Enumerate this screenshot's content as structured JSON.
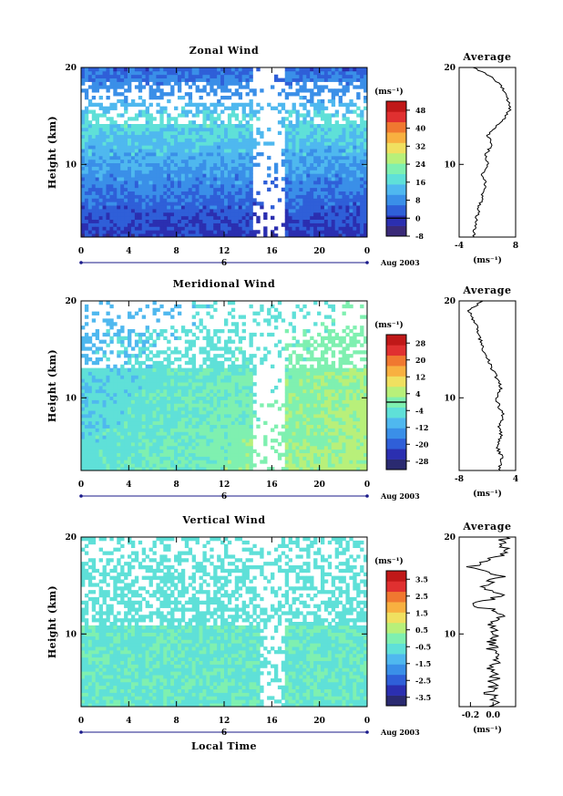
{
  "figure": {
    "xlabel_bottom": "Local Time",
    "date_label": "Aug 2003",
    "day_label": "6",
    "unit_label": "(ms⁻¹)",
    "avg_unit_label": "(ms⁻¹)",
    "avg_title": "Average"
  },
  "chart_data": [
    {
      "type": "heatmap",
      "title": "Zonal Wind",
      "ylabel": "Height (km)",
      "x_ticks": [
        "0",
        "4",
        "8",
        "12",
        "16",
        "20",
        "0"
      ],
      "y_ticks": [
        "10",
        "20"
      ],
      "xlim": [
        0,
        24
      ],
      "ylim": [
        2.5,
        20
      ],
      "colorbar_ticks": [
        "48",
        "40",
        "32",
        "24",
        "16",
        "8",
        "0",
        "-8"
      ],
      "colorbar_range": [
        -8,
        52
      ],
      "colors": [
        "#3a2a78",
        "#2b2fb0",
        "#2f5fd8",
        "#3a8fe8",
        "#4fb8ef",
        "#5fe0d8",
        "#7ff0b0",
        "#b8f07a",
        "#f0e060",
        "#f8b040",
        "#f07830",
        "#e03030",
        "#c01818"
      ],
      "average": {
        "title": "Average",
        "x_ticks": [
          "-4",
          "8"
        ],
        "xlim": [
          -4,
          8
        ],
        "profile_height": [
          2.5,
          4,
          5,
          6,
          7,
          8,
          9,
          10,
          11,
          12,
          13,
          14,
          15,
          16,
          17,
          18,
          19,
          20
        ],
        "profile_value": [
          -1,
          -0.5,
          0,
          0.5,
          1,
          1.5,
          1,
          2,
          1.5,
          3,
          2,
          4,
          6,
          7,
          6,
          5,
          3,
          -1
        ]
      }
    },
    {
      "type": "heatmap",
      "title": "Meridional Wind",
      "ylabel": "Height (km)",
      "x_ticks": [
        "0",
        "4",
        "8",
        "12",
        "16",
        "20",
        "0"
      ],
      "y_ticks": [
        "10",
        "20"
      ],
      "xlim": [
        0,
        24
      ],
      "ylim": [
        2.5,
        20
      ],
      "colorbar_ticks": [
        "28",
        "20",
        "12",
        "4",
        "-4",
        "-12",
        "-20",
        "-28"
      ],
      "colorbar_range": [
        -32,
        32
      ],
      "colors": [
        "#2a2a70",
        "#2b2fb0",
        "#2f5fd8",
        "#3a8fe8",
        "#4fb8ef",
        "#5fe0d8",
        "#7ff0b0",
        "#b8f07a",
        "#f0e060",
        "#f8b040",
        "#f07830",
        "#e03030",
        "#c01818"
      ],
      "average": {
        "title": "Average",
        "x_ticks": [
          "-8",
          "4"
        ],
        "xlim": [
          -8,
          4
        ],
        "profile_height": [
          2.5,
          4,
          5,
          6,
          7,
          8,
          9,
          10,
          11,
          12,
          13,
          14,
          15,
          16,
          17,
          18,
          19,
          20
        ],
        "profile_value": [
          0.5,
          1,
          0,
          1,
          0.5,
          1.5,
          0.5,
          0,
          1,
          0,
          -1,
          -2,
          -3,
          -3.5,
          -4,
          -5,
          -6,
          -3
        ]
      }
    },
    {
      "type": "heatmap",
      "title": "Vertical Wind",
      "ylabel": "Height (km)",
      "xlabel": "Local Time",
      "x_ticks": [
        "0",
        "4",
        "8",
        "12",
        "16",
        "20",
        "0"
      ],
      "y_ticks": [
        "10",
        "20"
      ],
      "xlim": [
        0,
        24
      ],
      "ylim": [
        2.5,
        20
      ],
      "colorbar_ticks": [
        "3.5",
        "2.5",
        "1.5",
        "0.5",
        "-0.5",
        "-1.5",
        "-2.5",
        "-3.5"
      ],
      "colorbar_range": [
        -4,
        4
      ],
      "colors": [
        "#2a2a70",
        "#2b2fb0",
        "#2f5fd8",
        "#3a8fe8",
        "#4fb8ef",
        "#5fe0d8",
        "#7ff0b0",
        "#b8f07a",
        "#f0e060",
        "#f8b040",
        "#f07830",
        "#e03030",
        "#c01818"
      ],
      "average": {
        "title": "Average",
        "x_ticks": [
          "-0.2",
          "0.0"
        ],
        "xlim": [
          -0.3,
          0.2
        ],
        "profile_height": [
          2.5,
          3,
          4,
          5,
          6,
          7,
          8,
          9,
          10,
          11,
          12,
          13,
          14,
          15,
          16,
          17,
          18,
          19,
          20
        ],
        "profile_value": [
          0,
          0.05,
          -0.05,
          0.02,
          -0.02,
          0,
          0.02,
          -0.03,
          0.04,
          -0.05,
          0.1,
          -0.15,
          0.05,
          -0.1,
          0.08,
          -0.2,
          0.05,
          0.1,
          0.08
        ]
      }
    }
  ]
}
